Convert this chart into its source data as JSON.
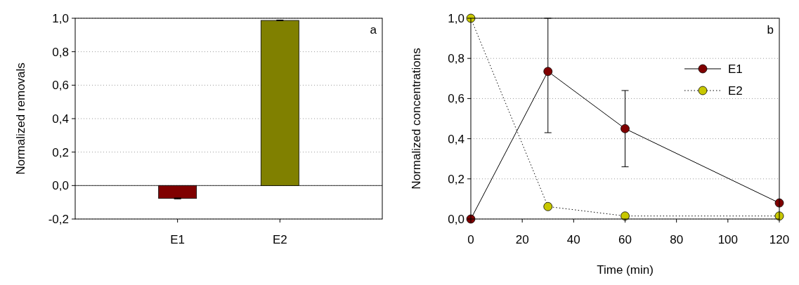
{
  "chart_data": [
    {
      "type": "bar",
      "ylabel": "Normalized removals",
      "categories": [
        "E1",
        "E2"
      ],
      "values": [
        -0.077,
        0.987
      ],
      "colors": [
        "#800000",
        "#808000"
      ],
      "errors": [
        0.003,
        0.002
      ],
      "ylim": [
        -0.2,
        1.0
      ],
      "yticks": [
        {
          "value": -0.2,
          "label": "-0,2"
        },
        {
          "value": 0,
          "label": "0,0"
        },
        {
          "value": 0.2,
          "label": "0,2"
        },
        {
          "value": 0.4,
          "label": "0,4"
        },
        {
          "value": 0.6,
          "label": "0,6"
        },
        {
          "value": 0.8,
          "label": "0,8"
        },
        {
          "value": 1.0,
          "label": "1,0"
        }
      ],
      "grid": "y",
      "ref_lines": [
        {
          "axis": "y",
          "value": 0
        }
      ],
      "annotations": [
        "a"
      ]
    },
    {
      "type": "line",
      "xlabel": "Time (min)",
      "ylabel": "Normalized concentrations",
      "x": [
        0,
        30,
        60,
        120
      ],
      "series": [
        {
          "name": "E1",
          "color": "#800000",
          "values": [
            0.0,
            0.735,
            0.45,
            0.08
          ],
          "errors": [
            null,
            [
              0.43,
              1.0
            ],
            [
              0.26,
              0.64
            ],
            null
          ],
          "line_style": "solid"
        },
        {
          "name": "E2",
          "color": "#c8c800",
          "values": [
            1.0,
            0.062,
            0.015,
            0.015
          ],
          "line_style": "dotted"
        }
      ],
      "xlim": [
        0,
        120
      ],
      "xticks": [
        0,
        20,
        40,
        60,
        80,
        100,
        120
      ],
      "ylim": [
        0,
        1.0
      ],
      "yticks": [
        {
          "value": 0,
          "label": "0,0"
        },
        {
          "value": 0.2,
          "label": "0,2"
        },
        {
          "value": 0.4,
          "label": "0,4"
        },
        {
          "value": 0.6,
          "label": "0,6"
        },
        {
          "value": 0.8,
          "label": "0,8"
        },
        {
          "value": 1.0,
          "label": "1,0"
        }
      ],
      "grid": "y",
      "legend": "top right",
      "marker": "circle",
      "annotations": [
        "b"
      ]
    }
  ]
}
